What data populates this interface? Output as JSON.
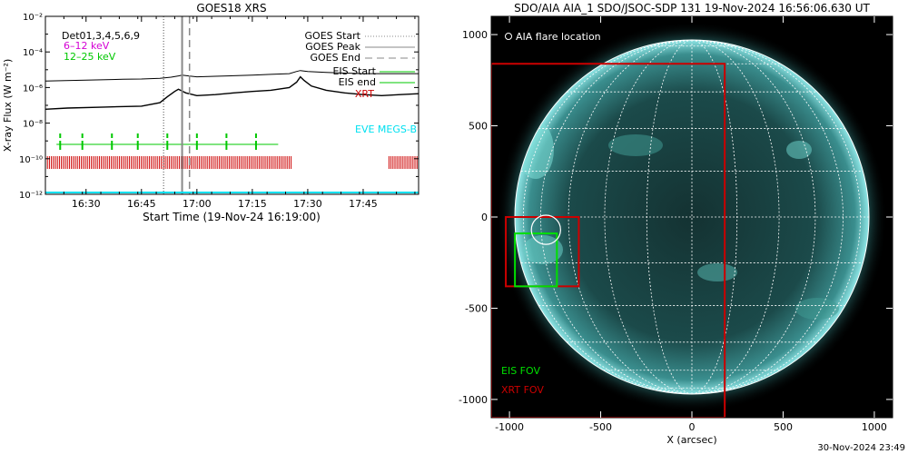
{
  "chart_data": [
    {
      "type": "line",
      "title": "GOES18 XRS",
      "xlabel": "Start Time (19-Nov-24 16:19:00)",
      "ylabel": "X-ray Flux (W m⁻²)",
      "x_ticks": [
        "16:30",
        "16:45",
        "17:00",
        "17:15",
        "17:30",
        "17:45"
      ],
      "y_ticks": [
        "10⁻¹²",
        "10⁻¹⁰",
        "10⁻⁸",
        "10⁻⁶",
        "10⁻⁴",
        "10⁻²"
      ],
      "xlim": [
        "16:19",
        "18:00"
      ],
      "ylim": [
        1e-12,
        0.01
      ],
      "yscale": "log",
      "series": [
        {
          "name": "",
          "color": "#000000",
          "x": [
            "16:19",
            "16:30",
            "16:40",
            "16:45",
            "16:50",
            "16:53",
            "16:55",
            "16:56",
            "16:58",
            "17:00",
            "17:05",
            "17:10",
            "17:15",
            "17:20",
            "17:25",
            "17:27",
            "17:28",
            "17:30",
            "17:35",
            "17:40",
            "17:45",
            "17:50",
            "17:55",
            "18:00"
          ],
          "y": [
            2.3e-06,
            2.6e-06,
            2.9e-06,
            3e-06,
            3.3e-06,
            3.8e-06,
            4.5e-06,
            5e-06,
            4.4e-06,
            4e-06,
            4.3e-06,
            4.6e-06,
            5e-06,
            5.5e-06,
            6e-06,
            8e-06,
            9e-06,
            8e-06,
            7e-06,
            6.5e-06,
            6e-06,
            6e-06,
            6e-06,
            6e-06
          ]
        },
        {
          "name": "",
          "color": "#000000",
          "x": [
            "16:19",
            "16:25",
            "16:35",
            "16:45",
            "16:50",
            "16:52",
            "16:54",
            "16:55",
            "16:57",
            "17:00",
            "17:05",
            "17:10",
            "17:15",
            "17:20",
            "17:25",
            "17:27",
            "17:28",
            "17:29",
            "17:31",
            "17:35",
            "17:40",
            "17:45",
            "17:50",
            "17:55",
            "18:00"
          ],
          "y": [
            6e-08,
            7e-08,
            8e-08,
            9e-08,
            1.4e-07,
            3e-07,
            6e-07,
            8e-07,
            5e-07,
            3.5e-07,
            4e-07,
            5e-07,
            6e-07,
            7e-07,
            1e-06,
            2e-06,
            4e-06,
            2.5e-06,
            1.2e-06,
            7e-07,
            5e-07,
            4e-07,
            3.5e-07,
            4e-07,
            4.5e-07
          ]
        }
      ],
      "vlines": [
        {
          "name": "GOES Start",
          "x": "16:51",
          "color": "#888888",
          "style": "dotted"
        },
        {
          "name": "GOES Peak",
          "x": "16:56",
          "color": "#888888",
          "style": "solid"
        },
        {
          "name": "GOES End",
          "x": "16:58",
          "color": "#888888",
          "style": "dashed"
        }
      ],
      "eis_times": [
        "16:23",
        "16:29",
        "16:37",
        "16:44",
        "16:52",
        "17:00",
        "17:08",
        "17:16"
      ],
      "eis_band": {
        "start": "16:22",
        "end": "17:22"
      },
      "xrt_bands": [
        {
          "start": "16:19",
          "end": "17:26"
        },
        {
          "start": "17:52",
          "end": "18:00"
        }
      ],
      "legend_left": {
        "dets": "Det01,3,4,5,6,9",
        "band1": "6–12 keV",
        "band2": "12–25 keV"
      },
      "legend_right": {
        "start": "GOES Start",
        "peak": "GOES Peak",
        "end": "GOES End",
        "eis_start": "EIS Start",
        "eis_end": "EIS end",
        "xrt": "XRT",
        "eve": "EVE MEGS-B"
      },
      "colors": {
        "band1": "#d400d4",
        "band2": "#00c800",
        "eis": "#00c800",
        "xrt": "#cc0000",
        "eve": "#00e0f0"
      }
    },
    {
      "type": "image",
      "title": "SDO/AIA AIA_1 SDO/JSOC-SDP 131 19-Nov-2024 16:56:06.630 UT",
      "xlabel": "X (arcsec)",
      "ylabel": "",
      "xlim": [
        -1100,
        1100
      ],
      "ylim": [
        -1100,
        1100
      ],
      "x_ticks": [
        -1000,
        -500,
        0,
        500,
        1000
      ],
      "y_ticks": [
        -1000,
        -500,
        0,
        500,
        1000
      ],
      "disk_radius_arcsec": 970,
      "flare_location_label": "AIA flare location",
      "flare_location": {
        "x": -800,
        "y": -70,
        "r": 80
      },
      "eis_fov": {
        "label": "EIS FOV",
        "x0": -970,
        "x1": -740,
        "y0": -380,
        "y1": -90,
        "color": "#00e000"
      },
      "xrt_fov": {
        "label": "XRT FOV",
        "x0": -1020,
        "x1": -620,
        "y0": -380,
        "y1": 0,
        "color": "#cc0000"
      },
      "xrt_fov_large": {
        "x0": -1100,
        "x1": 180,
        "y0": -1100,
        "y1": 840,
        "color": "#cc0000"
      }
    }
  ],
  "footer": {
    "timestamp": "30-Nov-2024 23:49"
  }
}
